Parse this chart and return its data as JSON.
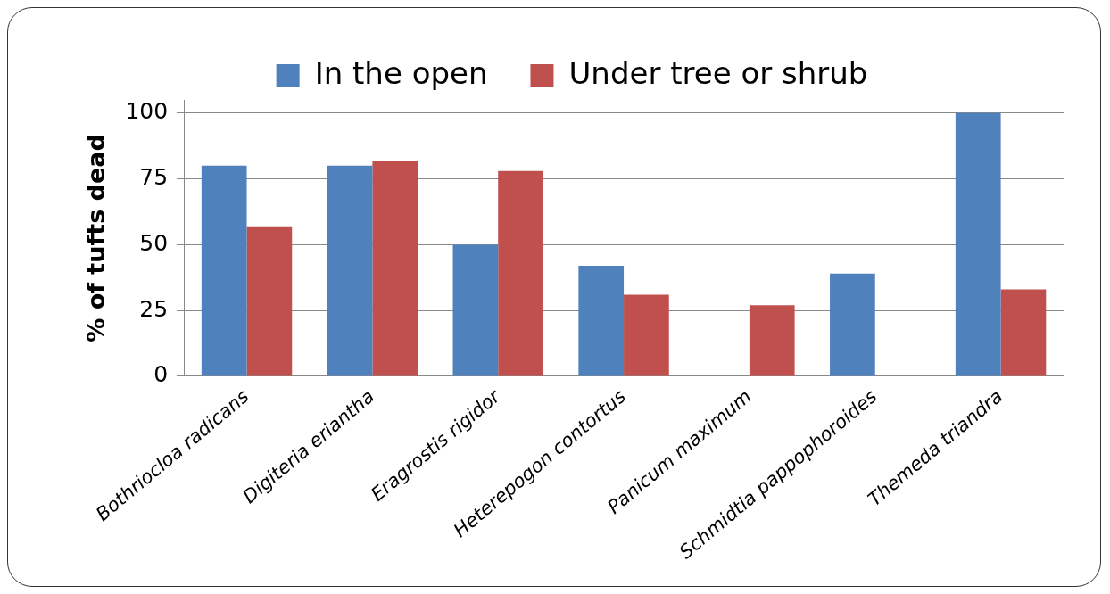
{
  "chart_data": {
    "type": "bar",
    "ylabel": "% of tufts dead",
    "categories": [
      "Bothriocloa radicans",
      "Digiteria eriantha",
      "Eragrostis rigidor",
      "Heterepogon contortus",
      "Panicum maximum",
      "Schmidtia pappophoroides",
      "Themeda triandra"
    ],
    "series": [
      {
        "name": "In the open",
        "color": "#4f81bd",
        "values": [
          80,
          80,
          50,
          42,
          0,
          39,
          100
        ]
      },
      {
        "name": "Under tree or shrub",
        "color": "#c0504d",
        "values": [
          57,
          82,
          78,
          31,
          27,
          0,
          33
        ]
      }
    ],
    "ylim": [
      0,
      105
    ],
    "yticks": [
      0,
      25,
      50,
      75,
      100
    ],
    "grid": "y",
    "legend": "top"
  }
}
